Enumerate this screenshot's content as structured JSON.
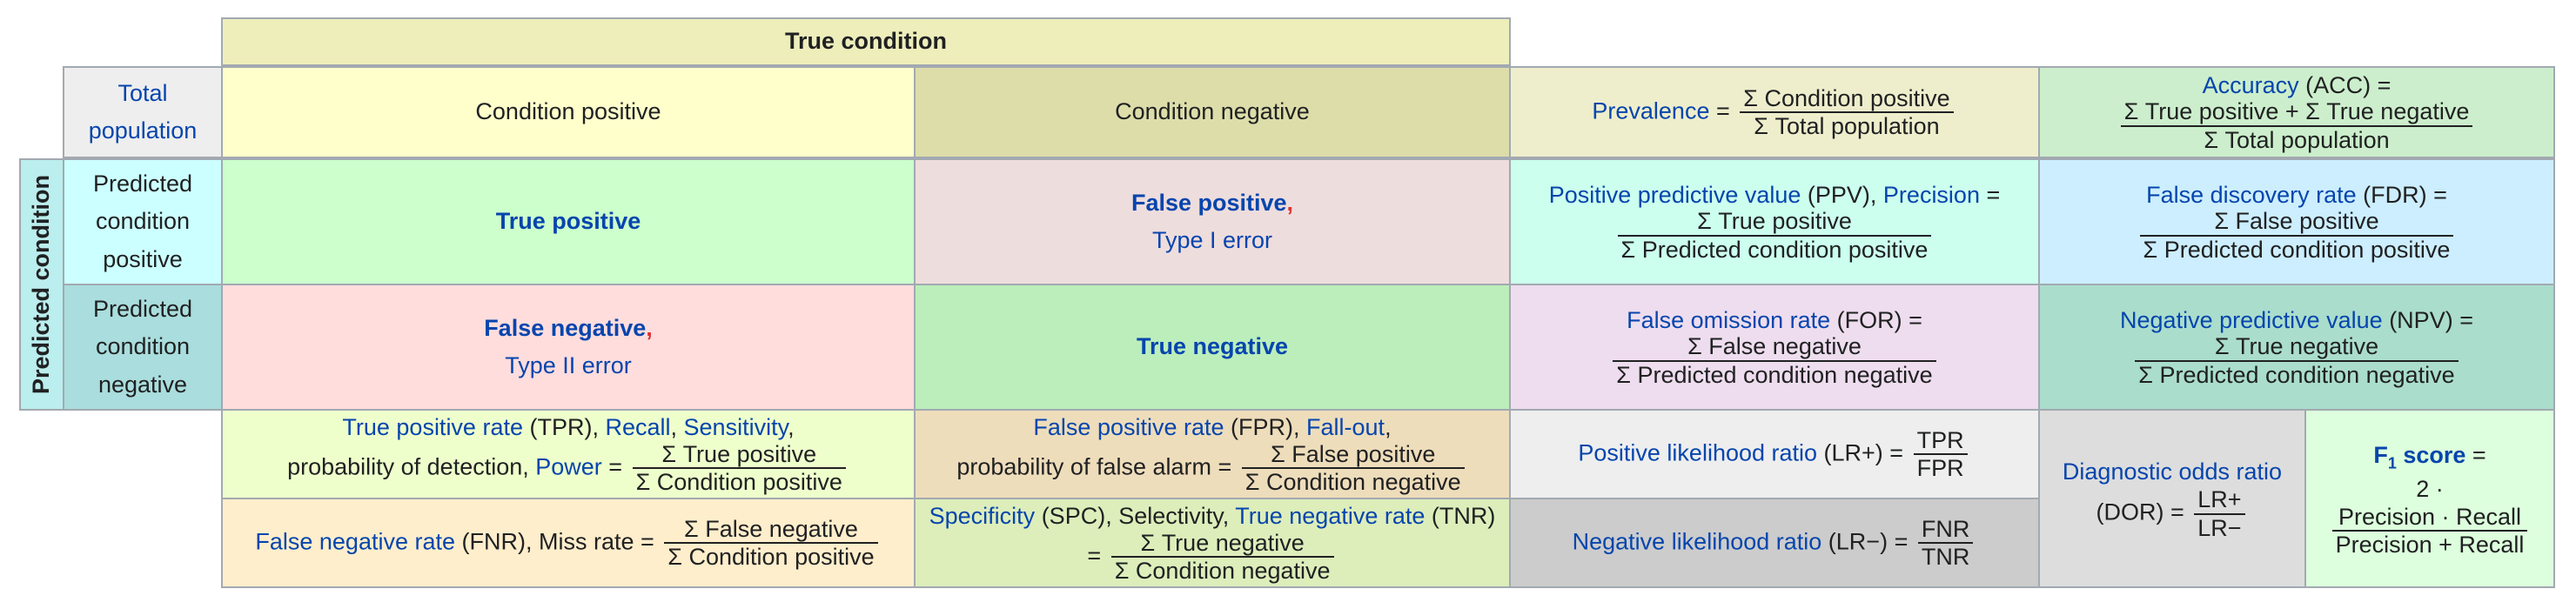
{
  "true_condition_header": "True condition",
  "predicted_condition_header": "Predicted condition",
  "total_population": [
    "Total",
    "population"
  ],
  "condition_positive": "Condition positive",
  "condition_negative": "Condition negative",
  "predicted_condition_positive": [
    "Predicted",
    "condition",
    "positive"
  ],
  "predicted_condition_negative": [
    "Predicted",
    "condition",
    "negative"
  ],
  "true_positive": "True positive",
  "true_negative": "True negative",
  "false_positive": {
    "name": "False positive",
    "comma": ",",
    "type": "Type I error"
  },
  "false_negative": {
    "name": "False negative",
    "comma": ",",
    "type": "Type II error"
  },
  "prevalence": {
    "label": "Prevalence",
    "eq": "=",
    "num": "Σ Condition positive",
    "den": "Σ Total population"
  },
  "accuracy": {
    "label": "Accuracy",
    "abbr": " (ACC) =",
    "num": "Σ True positive + Σ True negative",
    "den": "Σ Total population"
  },
  "ppv": {
    "label": "Positive predictive value",
    "abbr": " (PPV), ",
    "label2": "Precision",
    "eq": " =",
    "num": "Σ True positive",
    "den": "Σ Predicted condition positive"
  },
  "fdr": {
    "label": "False discovery rate",
    "abbr": " (FDR) =",
    "num": "Σ False positive",
    "den": "Σ Predicted condition positive"
  },
  "for": {
    "label": "False omission rate",
    "abbr": " (FOR) =",
    "num": "Σ False negative",
    "den": "Σ Predicted condition negative"
  },
  "npv": {
    "label": "Negative predictive value",
    "abbr": " (NPV) =",
    "num": "Σ True negative",
    "den": "Σ Predicted condition negative"
  },
  "tpr": {
    "label": "True positive rate",
    "abbr": " (TPR), ",
    "recall": "Recall",
    "sep": ", ",
    "sensitivity": "Sensitivity",
    "comma": ",",
    "line2": "probability of detection, ",
    "power": "Power",
    "eq": " =",
    "num": "Σ True positive",
    "den": "Σ Condition positive"
  },
  "fpr": {
    "label": "False positive rate",
    "abbr": " (FPR), ",
    "fallout": "Fall-out",
    "comma": ",",
    "line2": "probability of false alarm =",
    "num": "Σ False positive",
    "den": "Σ Condition negative"
  },
  "fnr": {
    "label": "False negative rate",
    "abbr": " (FNR), Miss rate =",
    "num": "Σ False negative",
    "den": "Σ Condition positive"
  },
  "tnr": {
    "label": "Specificity",
    "abbr": " (SPC), Selectivity, ",
    "label2": "True negative rate",
    "abbr2": " (TNR)",
    "eq": "=",
    "num": "Σ True negative",
    "den": "Σ Condition negative"
  },
  "lr_pos": {
    "label": "Positive likelihood ratio",
    "abbr": " (LR+) =",
    "num": "TPR",
    "den": "FPR"
  },
  "lr_neg": {
    "label": "Negative likelihood ratio",
    "abbr": " (LR−) =",
    "num": "FNR",
    "den": "TNR"
  },
  "dor": {
    "label": "Diagnostic odds ratio",
    "abbr": "(DOR) =",
    "num": "LR+",
    "den": "LR−"
  },
  "f1": {
    "label": "F",
    "sub": "1",
    "label_end": " score",
    "eq": " =",
    "factor": "2 · ",
    "num": "Precision · Recall",
    "den": "Precision + Recall"
  }
}
